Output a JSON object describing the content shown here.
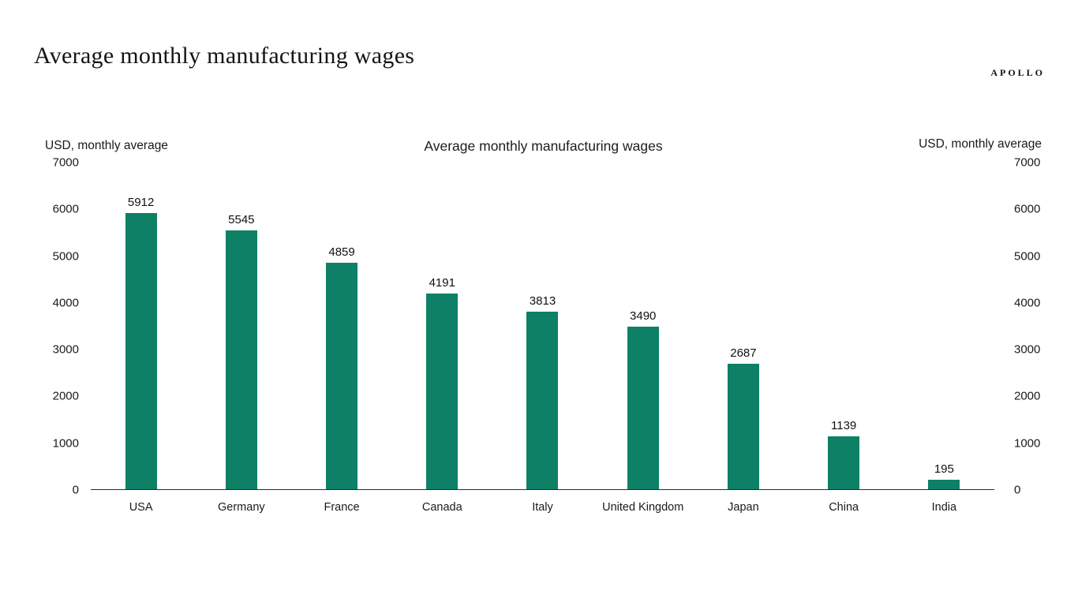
{
  "page": {
    "title": "Average monthly manufacturing wages",
    "brand": "APOLLO"
  },
  "chart_data": {
    "type": "bar",
    "title": "Average monthly manufacturing wages",
    "left_axis_label": "USD, monthly average",
    "right_axis_label": "USD, monthly average",
    "categories": [
      "USA",
      "Germany",
      "France",
      "Canada",
      "Italy",
      "United Kingdom",
      "Japan",
      "China",
      "India"
    ],
    "values": [
      5912,
      5545,
      4859,
      4191,
      3813,
      3490,
      2687,
      1139,
      195
    ],
    "ylim": [
      0,
      7000
    ],
    "yticks": [
      0,
      1000,
      2000,
      3000,
      4000,
      5000,
      6000,
      7000
    ],
    "grid": false,
    "legend": "none",
    "data_labels": true,
    "bar_color": "#0d8066"
  }
}
